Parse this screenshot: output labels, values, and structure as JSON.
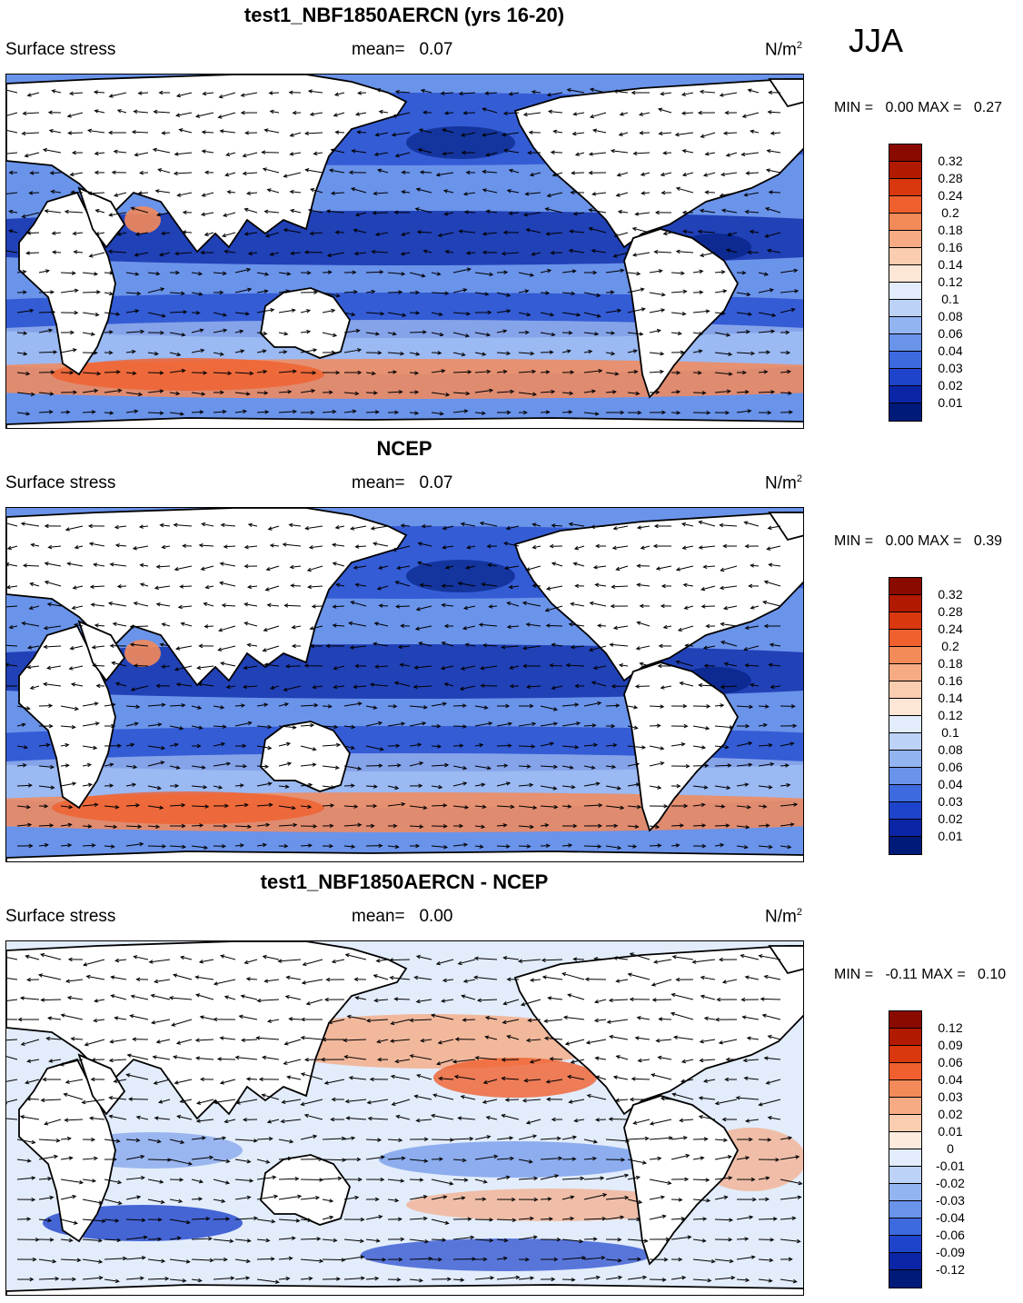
{
  "season": "JJA",
  "panels": [
    {
      "title": "test1_NBF1850AERCN (yrs 16-20)",
      "variable": "Surface stress",
      "mean_label": "mean=",
      "mean_value": "0.07",
      "units": "N/m",
      "units_sup": "2",
      "min_label": "MIN =",
      "min_value": "0.00",
      "max_label": "MAX =",
      "max_value": "0.27",
      "colorbar_labels": [
        "0.32",
        "0.28",
        "0.24",
        "0.2",
        "0.18",
        "0.16",
        "0.14",
        "0.12",
        "0.1",
        "0.08",
        "0.06",
        "0.04",
        "0.03",
        "0.02",
        "0.01"
      ]
    },
    {
      "title": "NCEP",
      "variable": "Surface stress",
      "mean_label": "mean=",
      "mean_value": "0.07",
      "units": "N/m",
      "units_sup": "2",
      "min_label": "MIN =",
      "min_value": "0.00",
      "max_label": "MAX =",
      "max_value": "0.39",
      "colorbar_labels": [
        "0.32",
        "0.28",
        "0.24",
        "0.2",
        "0.18",
        "0.16",
        "0.14",
        "0.12",
        "0.1",
        "0.08",
        "0.06",
        "0.04",
        "0.03",
        "0.02",
        "0.01"
      ]
    },
    {
      "title": "test1_NBF1850AERCN - NCEP",
      "variable": "Surface stress",
      "mean_label": "mean=",
      "mean_value": "0.00",
      "units": "N/m",
      "units_sup": "2",
      "min_label": "MIN =",
      "min_value": "-0.11",
      "max_label": "MAX =",
      "max_value": "0.10",
      "colorbar_labels": [
        "0.12",
        "0.09",
        "0.06",
        "0.04",
        "0.03",
        "0.02",
        "0.01",
        "0",
        "-0.01",
        "-0.02",
        "-0.03",
        "-0.04",
        "-0.06",
        "-0.09",
        "-0.12"
      ]
    }
  ],
  "colors": {
    "abs_scale": [
      "#8b0a00",
      "#b21a00",
      "#d9380e",
      "#f0602e",
      "#f38a5a",
      "#f6ab84",
      "#fbcdb0",
      "#fde6d6",
      "#e2ecfb",
      "#bcd2f6",
      "#92b4f0",
      "#6a93ea",
      "#3e6ae0",
      "#1e44cc",
      "#0a26a6",
      "#001a7a"
    ],
    "diff_scale": [
      "#8b0a00",
      "#b21a00",
      "#d9380e",
      "#f0602e",
      "#f38a5a",
      "#f6ab84",
      "#fbcdb0",
      "#fdebdd",
      "#e2ecfb",
      "#bcd2f6",
      "#92b4f0",
      "#6a93ea",
      "#3e6ae0",
      "#1e44cc",
      "#0a26a6",
      "#001a7a"
    ]
  }
}
